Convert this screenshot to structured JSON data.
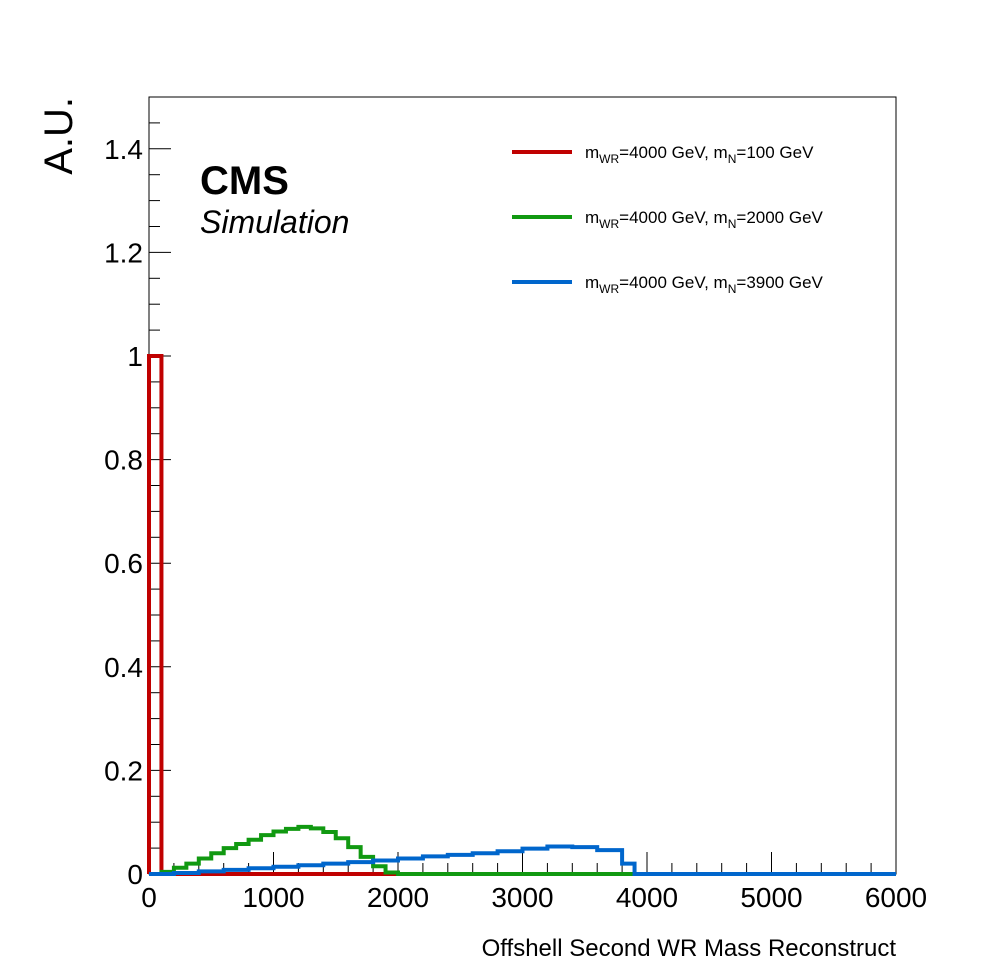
{
  "chart_data": {
    "type": "line",
    "style": "step-histogram",
    "xlabel": "Offshell Second WR Mass Reconstruct",
    "ylabel": "A.U.",
    "xlim": [
      0,
      6000
    ],
    "ylim": [
      0,
      1.5
    ],
    "bin_width": 100,
    "x_ticks": [
      "0",
      "1000",
      "2000",
      "3000",
      "4000",
      "5000",
      "6000"
    ],
    "y_ticks": [
      "0",
      "0.2",
      "0.4",
      "0.6",
      "0.8",
      "1",
      "1.2",
      "1.4"
    ],
    "grid": false,
    "legend_position": "top-right",
    "cms_label": "CMS",
    "cms_sublabel": "Simulation",
    "series": [
      {
        "label_parts": [
          {
            "t": "m"
          },
          {
            "t": "WR",
            "sub": true
          },
          {
            "t": "=4000 GeV, m"
          },
          {
            "t": "N",
            "sub": true
          },
          {
            "t": "=100 GeV"
          }
        ],
        "color": "#c00000",
        "bin_edges_x": [
          0,
          100,
          2000
        ],
        "values": [
          1.0,
          0.0
        ]
      },
      {
        "label_parts": [
          {
            "t": "m"
          },
          {
            "t": "WR",
            "sub": true
          },
          {
            "t": "=4000 GeV, m"
          },
          {
            "t": "N",
            "sub": true
          },
          {
            "t": "=2000 GeV"
          }
        ],
        "color": "#119911",
        "bin_edges_x": [
          0,
          100,
          200,
          300,
          400,
          500,
          600,
          700,
          800,
          900,
          1000,
          1100,
          1200,
          1300,
          1400,
          1500,
          1600,
          1700,
          1800,
          1900,
          2000,
          6000
        ],
        "values": [
          0.0,
          0.004,
          0.012,
          0.02,
          0.03,
          0.04,
          0.05,
          0.058,
          0.066,
          0.075,
          0.082,
          0.087,
          0.091,
          0.088,
          0.081,
          0.069,
          0.052,
          0.033,
          0.015,
          0.003,
          0.0
        ]
      },
      {
        "label_parts": [
          {
            "t": "m"
          },
          {
            "t": "WR",
            "sub": true
          },
          {
            "t": "=4000 GeV, m"
          },
          {
            "t": "N",
            "sub": true
          },
          {
            "t": "=3900 GeV"
          }
        ],
        "color": "#0066cc",
        "bin_edges_x": [
          0,
          200,
          400,
          600,
          800,
          1000,
          1200,
          1400,
          1600,
          1800,
          2000,
          2200,
          2400,
          2600,
          2800,
          3000,
          3200,
          3400,
          3600,
          3800,
          3900,
          6000
        ],
        "values": [
          0.0,
          0.002,
          0.005,
          0.008,
          0.011,
          0.014,
          0.017,
          0.02,
          0.023,
          0.026,
          0.03,
          0.034,
          0.037,
          0.04,
          0.044,
          0.049,
          0.053,
          0.052,
          0.046,
          0.02,
          0.0
        ]
      }
    ]
  }
}
